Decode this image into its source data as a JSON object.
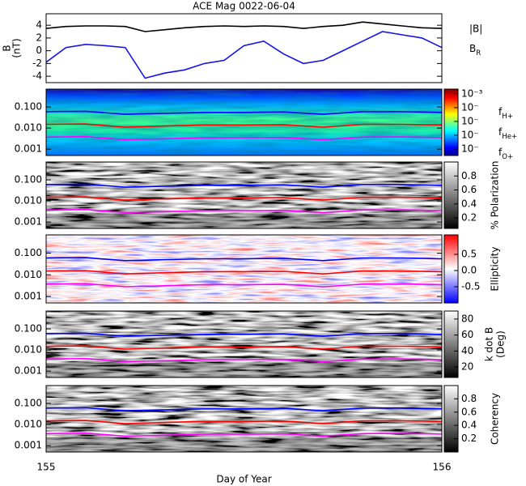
{
  "chart_data": [
    {
      "type": "line",
      "title": "ACE Mag 0022-06-04",
      "ylabel": [
        "B",
        "(nT)"
      ],
      "x": [
        155,
        155.05,
        155.1,
        155.15,
        155.2,
        155.25,
        155.3,
        155.35,
        155.4,
        155.45,
        155.5,
        155.55,
        155.6,
        155.65,
        155.7,
        155.75,
        155.8,
        155.85,
        155.9,
        155.95,
        156
      ],
      "xlim": [
        155,
        156
      ],
      "xticks": [
        155,
        156
      ],
      "ylim": [
        -5,
        5.8
      ],
      "yticks": [
        4,
        2,
        0,
        -2,
        -4
      ],
      "legend": "right",
      "series": [
        {
          "name": "|B|",
          "color": "#000000",
          "values": [
            3.5,
            3.8,
            3.9,
            3.9,
            3.8,
            3.0,
            3.3,
            3.6,
            3.8,
            3.9,
            3.8,
            3.9,
            3.8,
            3.5,
            3.8,
            4.0,
            4.5,
            4.2,
            3.9,
            3.6,
            3.5
          ]
        },
        {
          "name": "BR",
          "color": "#1414e6",
          "values": [
            -1.8,
            0.5,
            1.0,
            0.8,
            0.5,
            -4.3,
            -3.5,
            -3.0,
            -2.0,
            -1.5,
            0.8,
            1.5,
            -0.5,
            -2.0,
            -1.5,
            0.0,
            1.5,
            3.0,
            2.5,
            2.0,
            0.5
          ]
        }
      ]
    },
    {
      "type": "spectrogram",
      "colormap": "jet",
      "x": [
        155,
        155.1,
        155.2,
        155.3,
        155.4,
        155.5,
        155.6,
        155.7,
        155.8,
        155.9,
        156
      ],
      "xlim": [
        155,
        156
      ],
      "xticks": [
        155,
        156
      ],
      "ylog": true,
      "ylim": [
        0.0005,
        0.7
      ],
      "yticks": [
        {
          "value": 0.1,
          "label": "0.100"
        },
        {
          "value": 0.01,
          "label": "0.010"
        },
        0.001
      ],
      "clog": true,
      "clim": [
        3.4e-08,
        0.0022
      ],
      "cticks": [
        {
          "value": 0.001,
          "label": "10⁻³"
        },
        {
          "value": 0.0001,
          "label": "10⁻"
        },
        {
          "value": 1e-05,
          "label": "10⁻"
        },
        {
          "value": 1e-06,
          "label": "10⁻"
        },
        {
          "value": 1e-07,
          "label": "10⁻"
        }
      ],
      "legend": "right",
      "series": [
        {
          "name": "fH+",
          "color": "#0000ff",
          "values": [
            0.06,
            0.062,
            0.045,
            0.05,
            0.055,
            0.055,
            0.058,
            0.045,
            0.06,
            0.06,
            0.055
          ]
        },
        {
          "name": "fHe+",
          "color": "#ff0000",
          "values": [
            0.015,
            0.0155,
            0.011,
            0.0125,
            0.014,
            0.014,
            0.0145,
            0.011,
            0.015,
            0.015,
            0.014
          ]
        },
        {
          "name": "fO+",
          "color": "#ff00ff",
          "values": [
            0.0037,
            0.0039,
            0.0028,
            0.0031,
            0.0035,
            0.0035,
            0.0036,
            0.0028,
            0.0037,
            0.0038,
            0.0035
          ]
        }
      ]
    },
    {
      "type": "spectrogram",
      "colormap": "gray",
      "clabel": [
        "% Polarization"
      ],
      "x": [
        155,
        155.1,
        155.2,
        155.3,
        155.4,
        155.5,
        155.6,
        155.7,
        155.8,
        155.9,
        156
      ],
      "xlim": [
        155,
        156
      ],
      "xticks": [
        155,
        156
      ],
      "ylog": true,
      "ylim": [
        0.0005,
        0.7
      ],
      "yticks": [
        {
          "value": 0.1,
          "label": "0.100"
        },
        {
          "value": 0.01,
          "label": "0.010"
        },
        0.001
      ],
      "clim": [
        0.05,
        1
      ],
      "cticks": [
        0.8,
        0.6,
        0.4,
        0.2
      ],
      "series": [
        {
          "color": "#0000ff",
          "values": [
            0.06,
            0.062,
            0.045,
            0.05,
            0.055,
            0.055,
            0.058,
            0.045,
            0.06,
            0.06,
            0.055
          ]
        },
        {
          "color": "#ff0000",
          "values": [
            0.015,
            0.0155,
            0.011,
            0.0125,
            0.014,
            0.014,
            0.0145,
            0.011,
            0.015,
            0.015,
            0.014
          ]
        },
        {
          "color": "#ff00ff",
          "values": [
            0.0037,
            0.0039,
            0.0028,
            0.0031,
            0.0035,
            0.0035,
            0.0036,
            0.0028,
            0.0037,
            0.0038,
            0.0035
          ]
        }
      ]
    },
    {
      "type": "spectrogram",
      "colormap": "bwr",
      "clabel": [
        "Ellipticity"
      ],
      "x": [
        155,
        155.1,
        155.2,
        155.3,
        155.4,
        155.5,
        155.6,
        155.7,
        155.8,
        155.9,
        156
      ],
      "xlim": [
        155,
        156
      ],
      "xticks": [
        155,
        156
      ],
      "ylog": true,
      "ylim": [
        0.0005,
        0.7
      ],
      "yticks": [
        {
          "value": 0.1,
          "label": "0.100"
        },
        {
          "value": 0.01,
          "label": "0.010"
        },
        0.001
      ],
      "clim": [
        -1,
        1.1
      ],
      "cticks": [
        0.5,
        {
          "value": 0,
          "label": "0.0"
        },
        -0.5
      ],
      "series": [
        {
          "color": "#0000ff",
          "values": [
            0.06,
            0.062,
            0.045,
            0.05,
            0.055,
            0.055,
            0.058,
            0.045,
            0.06,
            0.06,
            0.055
          ]
        },
        {
          "color": "#ff0000",
          "values": [
            0.015,
            0.0155,
            0.011,
            0.0125,
            0.014,
            0.014,
            0.0145,
            0.011,
            0.015,
            0.015,
            0.014
          ]
        },
        {
          "color": "#ff00ff",
          "values": [
            0.0037,
            0.0039,
            0.0028,
            0.0031,
            0.0035,
            0.0035,
            0.0036,
            0.0028,
            0.0037,
            0.0038,
            0.0035
          ]
        }
      ]
    },
    {
      "type": "spectrogram",
      "colormap": "gray",
      "clabel": [
        "k dot B",
        "(Deg)"
      ],
      "x": [
        155,
        155.1,
        155.2,
        155.3,
        155.4,
        155.5,
        155.6,
        155.7,
        155.8,
        155.9,
        156
      ],
      "xlim": [
        155,
        156
      ],
      "xticks": [
        155,
        156
      ],
      "ylog": true,
      "ylim": [
        0.0005,
        0.7
      ],
      "yticks": [
        {
          "value": 0.1,
          "label": "0.100"
        },
        {
          "value": 0.01,
          "label": "0.010"
        },
        0.001
      ],
      "clim": [
        7,
        90
      ],
      "cticks": [
        80,
        60,
        40,
        20
      ],
      "series": [
        {
          "color": "#0000ff",
          "values": [
            0.06,
            0.062,
            0.045,
            0.05,
            0.055,
            0.055,
            0.058,
            0.045,
            0.06,
            0.06,
            0.055
          ]
        },
        {
          "color": "#ff0000",
          "values": [
            0.015,
            0.0155,
            0.011,
            0.0125,
            0.014,
            0.014,
            0.0145,
            0.011,
            0.015,
            0.015,
            0.014
          ]
        },
        {
          "color": "#ff00ff",
          "values": [
            0.0037,
            0.0039,
            0.0028,
            0.0031,
            0.0035,
            0.0035,
            0.0036,
            0.0028,
            0.0037,
            0.0038,
            0.0035
          ]
        }
      ]
    },
    {
      "type": "spectrogram",
      "colormap": "gray",
      "clabel": [
        "Coherency"
      ],
      "xlabel": "Day of Year",
      "x": [
        155,
        155.1,
        155.2,
        155.3,
        155.4,
        155.5,
        155.6,
        155.7,
        155.8,
        155.9,
        156
      ],
      "xlim": [
        155,
        156
      ],
      "xticks": [
        155,
        156
      ],
      "ylog": true,
      "ylim": [
        0.0005,
        0.7
      ],
      "yticks": [
        {
          "value": 0.1,
          "label": "0.100"
        },
        {
          "value": 0.01,
          "label": "0.010"
        },
        0.001
      ],
      "clim": [
        0,
        1
      ],
      "cticks": [
        0.8,
        0.6,
        0.4,
        0.2
      ],
      "series": [
        {
          "color": "#0000ff",
          "values": [
            0.06,
            0.062,
            0.045,
            0.05,
            0.055,
            0.055,
            0.058,
            0.045,
            0.06,
            0.06,
            0.055
          ]
        },
        {
          "color": "#ff0000",
          "values": [
            0.015,
            0.0155,
            0.011,
            0.0125,
            0.014,
            0.014,
            0.0145,
            0.011,
            0.015,
            0.015,
            0.014
          ]
        },
        {
          "color": "#ff00ff",
          "values": [
            0.0037,
            0.0039,
            0.0028,
            0.0031,
            0.0035,
            0.0035,
            0.0036,
            0.0028,
            0.0037,
            0.0038,
            0.0035
          ]
        }
      ]
    }
  ]
}
